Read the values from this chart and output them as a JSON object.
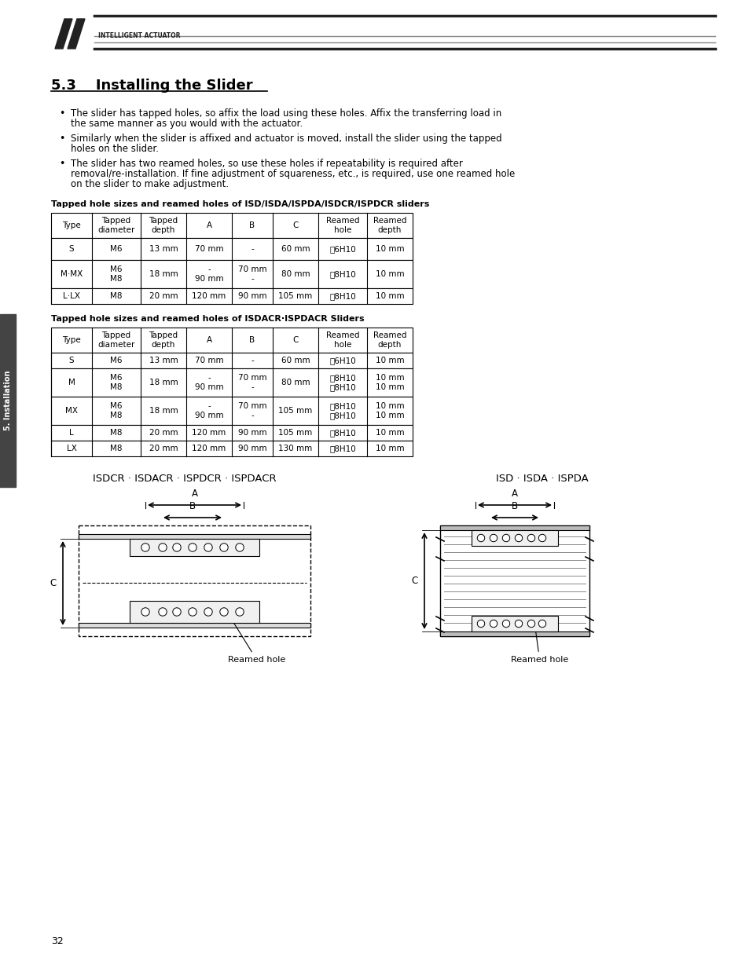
{
  "title": "5.3    Installing the Slider",
  "page_num": "32",
  "bg_color": "#ffffff",
  "text_color": "#000000",
  "bullet_points": [
    "The slider has tapped holes, so affix the load using these holes. Affix the transferring load in the same manner as you would with the actuator.",
    "Similarly when the slider is affixed and actuator is moved, install the slider using the tapped holes on the slider.",
    "The slider has two reamed holes, so use these holes if repeatability is required after removal/re-installation. If fine adjustment of squareness, etc., is required, use one reamed hole on the slider to make adjustment."
  ],
  "table1_title": "Tapped hole sizes and reamed holes of ISD/ISDA/ISPDA/ISDCR/ISPDCR sliders",
  "table1_headers": [
    "Type",
    "Tapped\ndiameter",
    "Tapped\ndepth",
    "A",
    "B",
    "C",
    "Reamed\nhole",
    "Reamed\ndepth"
  ],
  "table1_rows": [
    [
      "S",
      "M6",
      "13 mm",
      "70 mm",
      "-",
      "60 mm",
      "⎅6H10",
      "10 mm"
    ],
    [
      "M·MX",
      "M6\nM8",
      "18 mm",
      "-\n90 mm",
      "70 mm\n-",
      "80 mm",
      "⎅8H10",
      "10 mm"
    ],
    [
      "L·LX",
      "M8",
      "20 mm",
      "120 mm",
      "90 mm",
      "105 mm",
      "⎅8H10",
      "10 mm"
    ]
  ],
  "table2_title": "Tapped hole sizes and reamed holes of ISDACR·ISPDACR Sliders",
  "table2_headers": [
    "Type",
    "Tapped\ndiameter",
    "Tapped\ndepth",
    "A",
    "B",
    "C",
    "Reamed\nhole",
    "Reamed\ndepth"
  ],
  "table2_rows": [
    [
      "S",
      "M6",
      "13 mm",
      "70 mm",
      "-",
      "60 mm",
      "⎅6H10",
      "10 mm"
    ],
    [
      "M",
      "M6\nM8",
      "18 mm",
      "-\n90 mm",
      "70 mm\n-",
      "80 mm",
      "⎅8H10\n⎅8H10",
      "10 mm\n10 mm"
    ],
    [
      "MX",
      "M6\nM8",
      "18 mm",
      "-\n90 mm",
      "70 mm\n-",
      "105 mm",
      "⎅8H10\n⎅8H10",
      "10 mm\n10 mm"
    ],
    [
      "L",
      "M8",
      "20 mm",
      "120 mm",
      "90 mm",
      "105 mm",
      "⎅8H10",
      "10 mm"
    ],
    [
      "LX",
      "M8",
      "20 mm",
      "120 mm",
      "90 mm",
      "130 mm",
      "⎅8H10",
      "10 mm"
    ]
  ],
  "diag1_title": "ISDCR · ISDACR · ISPDCR · ISPDACR",
  "diag2_title": "ISD · ISDA · ISPDA",
  "sidebar_text": "5. Installation"
}
